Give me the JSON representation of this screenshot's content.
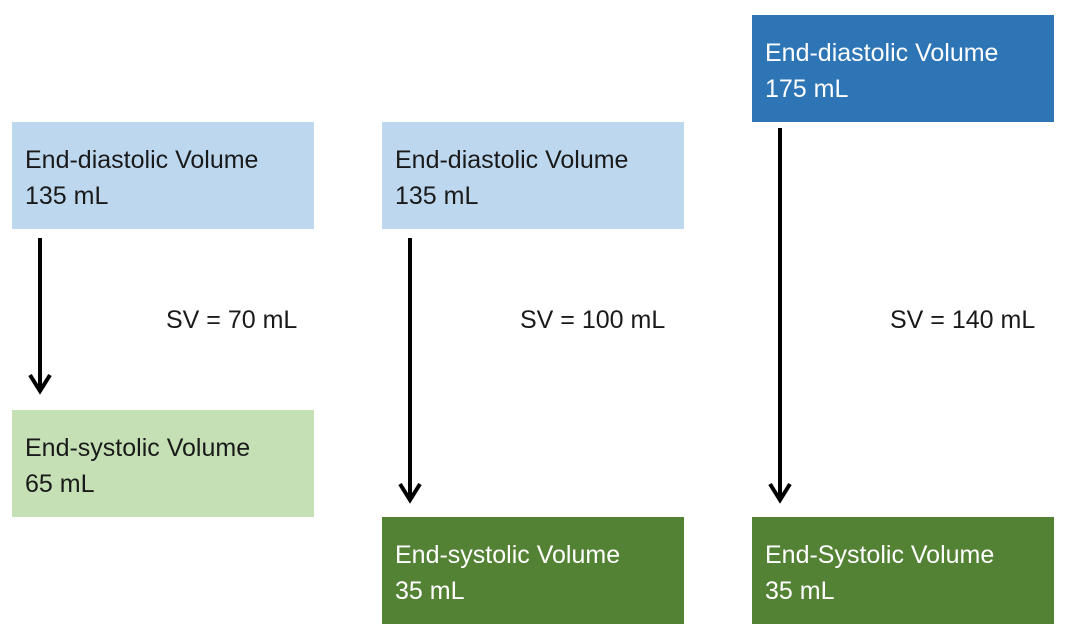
{
  "scenarios": [
    {
      "edv_label": "End-diastolic Volume",
      "edv_value": "135 mL",
      "sv_text": "SV = 70 mL",
      "esv_label": "End-systolic Volume",
      "esv_value": "65 mL"
    },
    {
      "edv_label": "End-diastolic Volume",
      "edv_value": "135 mL",
      "sv_text": "SV = 100 mL",
      "esv_label": "End-systolic Volume",
      "esv_value": "35 mL"
    },
    {
      "edv_label": "End-diastolic Volume",
      "edv_value": "175 mL",
      "sv_text": "SV = 140 mL",
      "esv_label": "End-Systolic Volume",
      "esv_value": "35 mL"
    }
  ],
  "colors": {
    "edv_baseline": "#bdd7ee",
    "edv_increased": "#2e75b6",
    "esv_baseline": "#c5e0b4",
    "esv_decreased": "#548235",
    "arrow": "#000000"
  }
}
